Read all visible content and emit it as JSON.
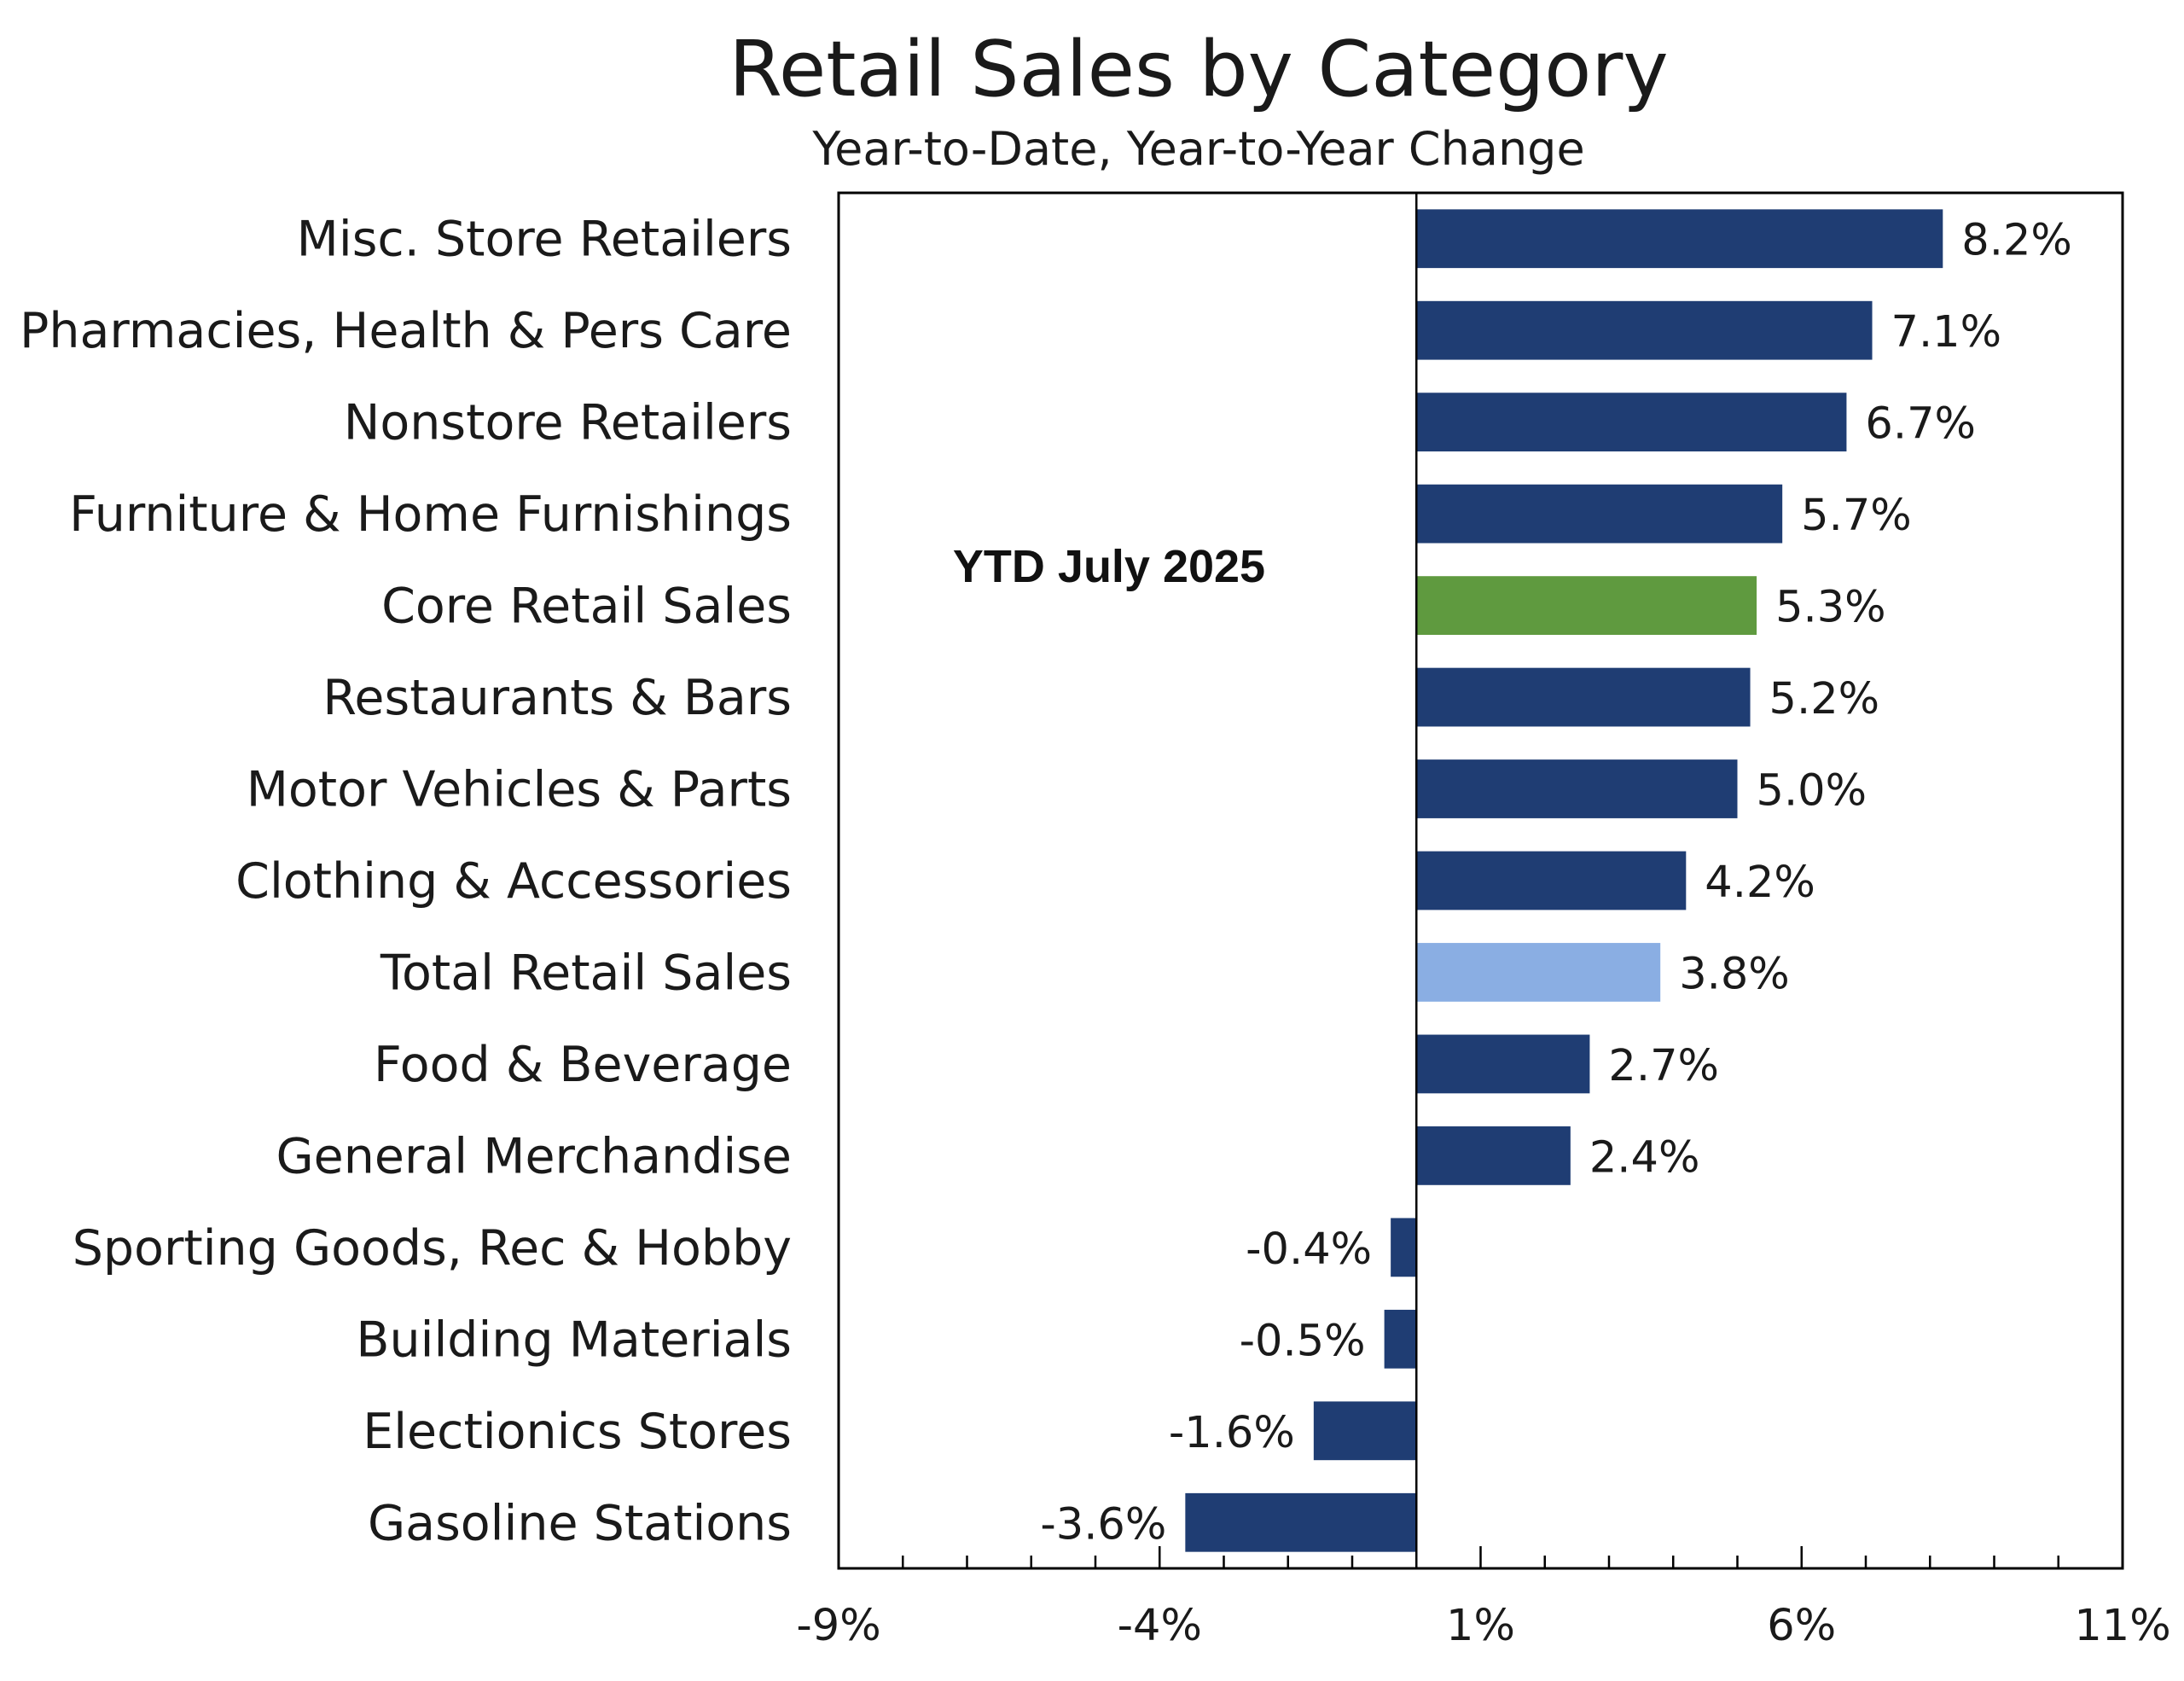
{
  "chart_data": {
    "type": "bar",
    "orientation": "horizontal",
    "title": "Retail Sales by Category",
    "subtitle": "Year-to-Date, Year-to-Year Change",
    "annotation": "YTD July 2025",
    "xlim": [
      -9,
      11
    ],
    "xticks": [
      -9,
      -4,
      1,
      6,
      11
    ],
    "xtick_labels": [
      "-9%",
      "-4%",
      "1%",
      "6%",
      "11%"
    ],
    "grid": false,
    "legend": "none",
    "colors": {
      "default": "#1f3d73",
      "Core Retail Sales": "#5f9a3f",
      "Total Retail Sales": "#8aaee3",
      "axis": "#000000"
    },
    "categories": [
      "Misc. Store Retailers",
      "Pharmacies, Health & Pers Care",
      "Nonstore Retailers",
      "Furniture & Home Furnishings",
      "Core Retail Sales",
      "Restaurants & Bars",
      "Motor Vehicles & Parts",
      "Clothing & Accessories",
      "Total Retail Sales",
      "Food & Beverage ",
      "General Merchandise",
      "Sporting Goods, Rec & Hobby",
      "Building Materials",
      "Electionics Stores",
      "Gasoline Stations"
    ],
    "values": [
      8.2,
      7.1,
      6.7,
      5.7,
      5.3,
      5.2,
      5.0,
      4.2,
      3.8,
      2.7,
      2.4,
      -0.4,
      -0.5,
      -1.6,
      -3.6
    ],
    "value_labels": [
      "8.2%",
      "7.1%",
      "6.7%",
      "5.7%",
      "5.3%",
      "5.2%",
      "5.0%",
      "4.2%",
      "3.8%",
      "2.7%",
      "2.4%",
      "-0.4%",
      "-0.5%",
      "-1.6%",
      "-3.6%"
    ]
  }
}
